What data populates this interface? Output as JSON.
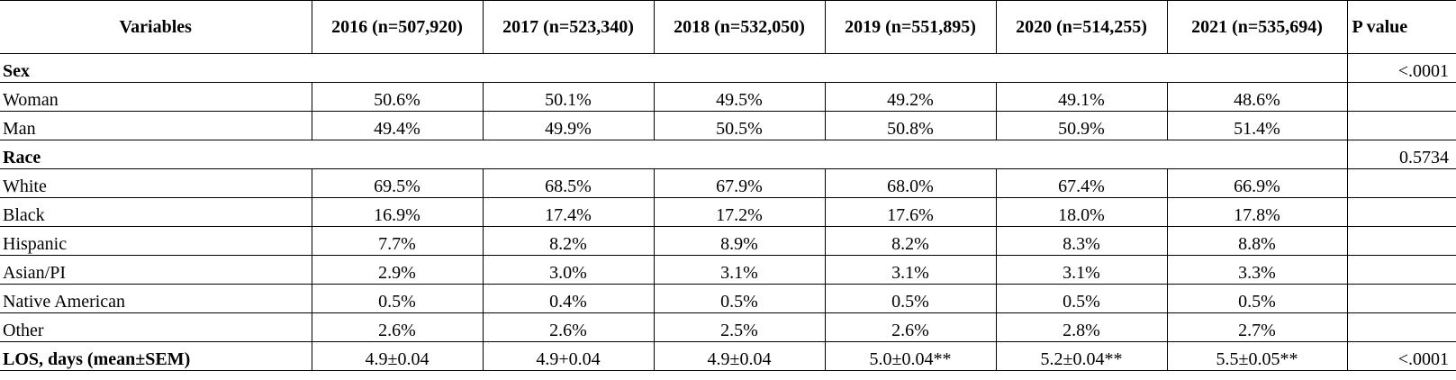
{
  "columns": {
    "variables": "Variables",
    "years": [
      "2016 (n=507,920)",
      "2017 (n=523,340)",
      "2018 (n=532,050)",
      "2019 (n=551,895)",
      "2020 (n=514,255)",
      "2021 (n=535,694)"
    ],
    "p_value": "P value"
  },
  "sections": {
    "sex": {
      "label": "Sex",
      "p": "<.0001",
      "rows": [
        {
          "label": "Woman",
          "values": [
            "50.6%",
            "50.1%",
            "49.5%",
            "49.2%",
            "49.1%",
            "48.6%"
          ]
        },
        {
          "label": "Man",
          "values": [
            "49.4%",
            "49.9%",
            "50.5%",
            "50.8%",
            "50.9%",
            "51.4%"
          ]
        }
      ]
    },
    "race": {
      "label": "Race",
      "p": "0.5734",
      "rows": [
        {
          "label": "White",
          "values": [
            "69.5%",
            "68.5%",
            "67.9%",
            "68.0%",
            "67.4%",
            "66.9%"
          ]
        },
        {
          "label": "Black",
          "values": [
            "16.9%",
            "17.4%",
            "17.2%",
            "17.6%",
            "18.0%",
            "17.8%"
          ]
        },
        {
          "label": "Hispanic",
          "values": [
            "7.7%",
            "8.2%",
            "8.9%",
            "8.2%",
            "8.3%",
            "8.8%"
          ]
        },
        {
          "label": "Asian/PI",
          "values": [
            "2.9%",
            "3.0%",
            "3.1%",
            "3.1%",
            "3.1%",
            "3.3%"
          ]
        },
        {
          "label": "Native American",
          "values": [
            "0.5%",
            "0.4%",
            "0.5%",
            "0.5%",
            "0.5%",
            "0.5%"
          ]
        },
        {
          "label": "Other",
          "values": [
            "2.6%",
            "2.6%",
            "2.5%",
            "2.6%",
            "2.8%",
            "2.7%"
          ]
        }
      ]
    },
    "los": {
      "label": "LOS, days (mean±SEM)",
      "values": [
        "4.9±0.04",
        "4.9+0.04",
        "4.9±0.04",
        "5.0±0.04**",
        "5.2±0.04**",
        "5.5±0.05**"
      ],
      "p": "<.0001"
    }
  }
}
